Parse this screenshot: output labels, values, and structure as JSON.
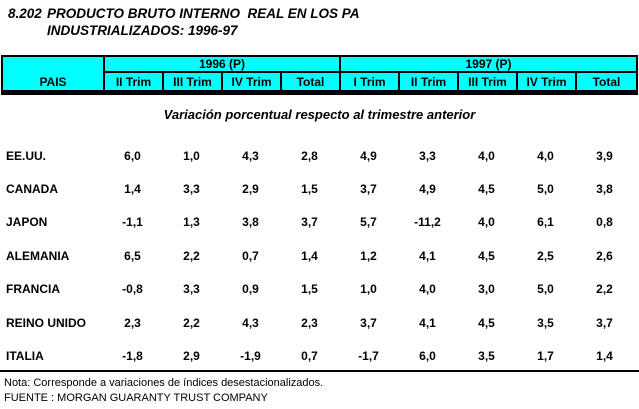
{
  "title": {
    "index": "8.202",
    "line1": "PRODUCTO BRUTO INTERNO  REAL EN LOS PA",
    "line2": "INDUSTRIALIZADOS: 1996-97"
  },
  "subtitle": "Variación porcentual respecto al trimestre anterior",
  "header": {
    "country": "PAIS",
    "group1996": "1996 (P)",
    "group1997": "1997 (P)",
    "cols1996": [
      "II Trim",
      "III Trim",
      "IV Trim",
      "Total"
    ],
    "cols1997": [
      "I Trim",
      "II Trim",
      "III Trim",
      "IV Trim",
      "Total"
    ]
  },
  "rows": [
    {
      "country": "EE.UU.",
      "values": [
        "6,0",
        "1,0",
        "4,3",
        "2,8",
        "4,9",
        "3,3",
        "4,0",
        "4,0",
        "3,9"
      ]
    },
    {
      "country": "CANADA",
      "values": [
        "1,4",
        "3,3",
        "2,9",
        "1,5",
        "3,7",
        "4,9",
        "4,5",
        "5,0",
        "3,8"
      ]
    },
    {
      "country": "JAPON",
      "values": [
        "-1,1",
        "1,3",
        "3,8",
        "3,7",
        "5,7",
        "-11,2",
        "4,0",
        "6,1",
        "0,8"
      ]
    },
    {
      "country": "ALEMANIA",
      "values": [
        "6,5",
        "2,2",
        "0,7",
        "1,4",
        "1,2",
        "4,1",
        "4,5",
        "2,5",
        "2,6"
      ]
    },
    {
      "country": "FRANCIA",
      "values": [
        "-0,8",
        "3,3",
        "0,9",
        "1,5",
        "1,0",
        "4,0",
        "3,0",
        "5,0",
        "2,2"
      ]
    },
    {
      "country": "REINO UNIDO",
      "values": [
        "2,3",
        "2,2",
        "4,3",
        "2,3",
        "3,7",
        "4,1",
        "4,5",
        "3,5",
        "3,7"
      ]
    },
    {
      "country": "ITALIA",
      "values": [
        "-1,8",
        "2,9",
        "-1,9",
        "0,7",
        "-1,7",
        "6,0",
        "3,5",
        "1,7",
        "1,4"
      ]
    }
  ],
  "footer": {
    "note": "Nota: Corresponde a variaciones de índices desestacionalizados.",
    "source": "FUENTE : MORGAN GUARANTY TRUST COMPANY"
  },
  "colors": {
    "header_bg": "#00FFFF",
    "border": "#000000",
    "text": "#000000",
    "page_bg": "#FFFFFF"
  }
}
